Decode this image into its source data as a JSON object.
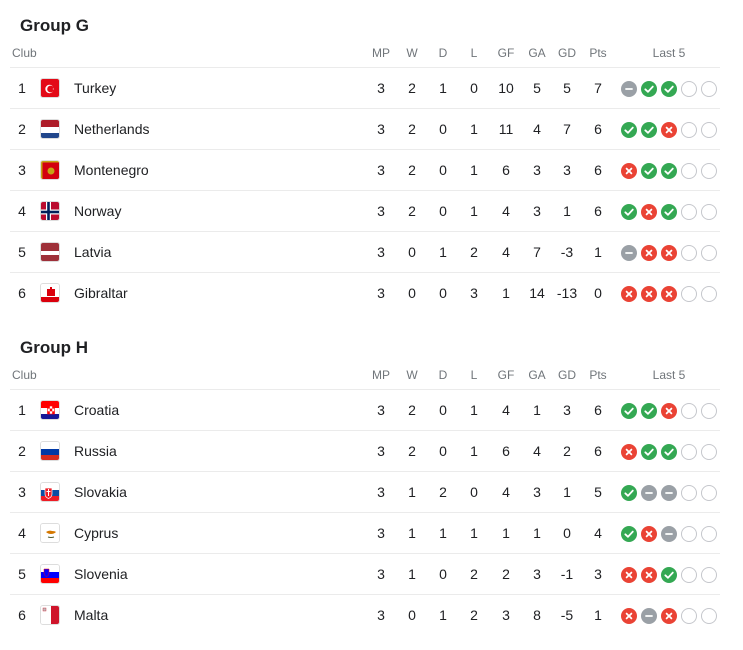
{
  "groups": [
    {
      "title": "Group G",
      "headers": {
        "club": "Club",
        "mp": "MP",
        "w": "W",
        "d": "D",
        "l": "L",
        "gf": "GF",
        "ga": "GA",
        "gd": "GD",
        "pts": "Pts",
        "last5": "Last 5"
      },
      "rows": [
        {
          "pos": "1",
          "club": "Turkey",
          "flag": "turkey",
          "mp": "3",
          "w": "2",
          "d": "1",
          "l": "0",
          "gf": "10",
          "ga": "5",
          "gd": "5",
          "pts": "7",
          "last5": [
            "D",
            "W",
            "W",
            "N",
            "N"
          ]
        },
        {
          "pos": "2",
          "club": "Netherlands",
          "flag": "netherlands",
          "mp": "3",
          "w": "2",
          "d": "0",
          "l": "1",
          "gf": "11",
          "ga": "4",
          "gd": "7",
          "pts": "6",
          "last5": [
            "W",
            "W",
            "L",
            "N",
            "N"
          ]
        },
        {
          "pos": "3",
          "club": "Montenegro",
          "flag": "montenegro",
          "mp": "3",
          "w": "2",
          "d": "0",
          "l": "1",
          "gf": "6",
          "ga": "3",
          "gd": "3",
          "pts": "6",
          "last5": [
            "L",
            "W",
            "W",
            "N",
            "N"
          ]
        },
        {
          "pos": "4",
          "club": "Norway",
          "flag": "norway",
          "mp": "3",
          "w": "2",
          "d": "0",
          "l": "1",
          "gf": "4",
          "ga": "3",
          "gd": "1",
          "pts": "6",
          "last5": [
            "W",
            "L",
            "W",
            "N",
            "N"
          ]
        },
        {
          "pos": "5",
          "club": "Latvia",
          "flag": "latvia",
          "mp": "3",
          "w": "0",
          "d": "1",
          "l": "2",
          "gf": "4",
          "ga": "7",
          "gd": "-3",
          "pts": "1",
          "last5": [
            "D",
            "L",
            "L",
            "N",
            "N"
          ]
        },
        {
          "pos": "6",
          "club": "Gibraltar",
          "flag": "gibraltar",
          "mp": "3",
          "w": "0",
          "d": "0",
          "l": "3",
          "gf": "1",
          "ga": "14",
          "gd": "-13",
          "pts": "0",
          "last5": [
            "L",
            "L",
            "L",
            "N",
            "N"
          ]
        }
      ]
    },
    {
      "title": "Group H",
      "headers": {
        "club": "Club",
        "mp": "MP",
        "w": "W",
        "d": "D",
        "l": "L",
        "gf": "GF",
        "ga": "GA",
        "gd": "GD",
        "pts": "Pts",
        "last5": "Last 5"
      },
      "rows": [
        {
          "pos": "1",
          "club": "Croatia",
          "flag": "croatia",
          "mp": "3",
          "w": "2",
          "d": "0",
          "l": "1",
          "gf": "4",
          "ga": "1",
          "gd": "3",
          "pts": "6",
          "last5": [
            "W",
            "W",
            "L",
            "N",
            "N"
          ]
        },
        {
          "pos": "2",
          "club": "Russia",
          "flag": "russia",
          "mp": "3",
          "w": "2",
          "d": "0",
          "l": "1",
          "gf": "6",
          "ga": "4",
          "gd": "2",
          "pts": "6",
          "last5": [
            "L",
            "W",
            "W",
            "N",
            "N"
          ]
        },
        {
          "pos": "3",
          "club": "Slovakia",
          "flag": "slovakia",
          "mp": "3",
          "w": "1",
          "d": "2",
          "l": "0",
          "gf": "4",
          "ga": "3",
          "gd": "1",
          "pts": "5",
          "last5": [
            "W",
            "D",
            "D",
            "N",
            "N"
          ]
        },
        {
          "pos": "4",
          "club": "Cyprus",
          "flag": "cyprus",
          "mp": "3",
          "w": "1",
          "d": "1",
          "l": "1",
          "gf": "1",
          "ga": "1",
          "gd": "0",
          "pts": "4",
          "last5": [
            "W",
            "L",
            "D",
            "N",
            "N"
          ]
        },
        {
          "pos": "5",
          "club": "Slovenia",
          "flag": "slovenia",
          "mp": "3",
          "w": "1",
          "d": "0",
          "l": "2",
          "gf": "2",
          "ga": "3",
          "gd": "-1",
          "pts": "3",
          "last5": [
            "L",
            "L",
            "W",
            "N",
            "N"
          ]
        },
        {
          "pos": "6",
          "club": "Malta",
          "flag": "malta",
          "mp": "3",
          "w": "0",
          "d": "1",
          "l": "2",
          "gf": "3",
          "ga": "8",
          "gd": "-5",
          "pts": "1",
          "last5": [
            "L",
            "D",
            "L",
            "N",
            "N"
          ]
        }
      ]
    }
  ],
  "colors": {
    "win": "#34a853",
    "loss": "#ea4335",
    "draw": "#9aa0a6",
    "empty": "#c5c7cc"
  }
}
